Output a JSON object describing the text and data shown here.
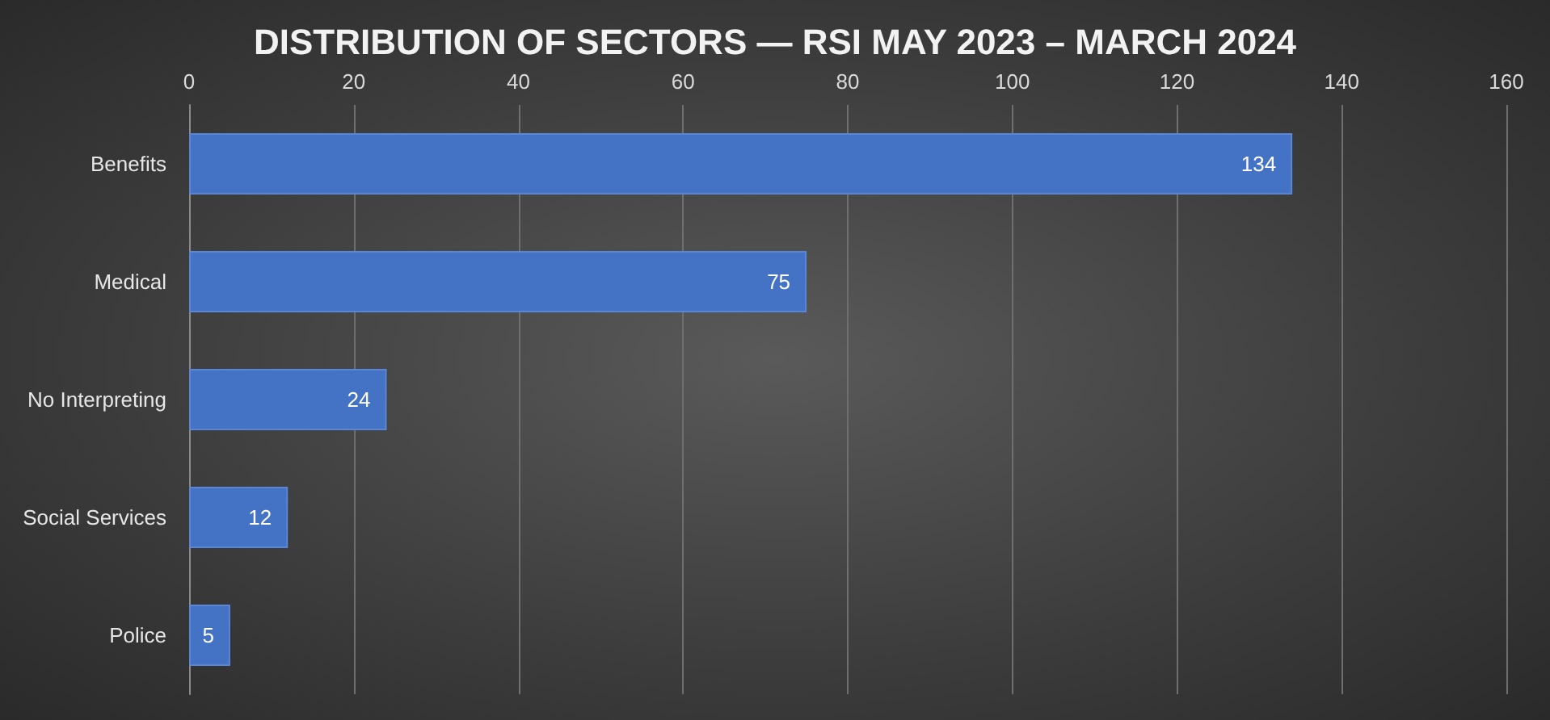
{
  "chart_data": {
    "type": "bar",
    "title": "DISTRIBUTION OF SECTORS — RSI MAY 2023 – MARCH 2024",
    "orientation": "horizontal",
    "categories": [
      "Benefits",
      "Medical",
      "No Interpreting",
      "Social Services",
      "Police"
    ],
    "values": [
      134,
      75,
      24,
      12,
      5
    ],
    "color": "#4472c4",
    "xlim": [
      0,
      160
    ],
    "xticks": [
      0,
      20,
      40,
      60,
      80,
      100,
      120,
      140,
      160
    ],
    "grid": "x",
    "data_labels": true
  }
}
